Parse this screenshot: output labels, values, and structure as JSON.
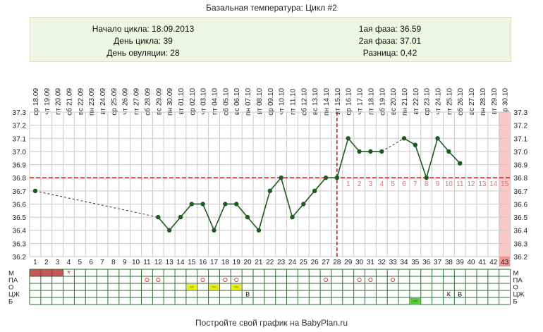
{
  "title": "Базальная температура: Цикл #2",
  "info": {
    "left": [
      "Начало цикла: 18.09.2013",
      "День цикла: 39",
      "День овуляции: 28"
    ],
    "right": [
      "1ая фаза: 36.59",
      "2ая фаза: 37.01",
      "Разница: 0,42"
    ]
  },
  "footer": "Постройте свой график на BabyPlan.ru",
  "colors": {
    "line": "#1f5a1f",
    "cover_line": "#cc0000",
    "grid": "#c8c8c8",
    "period_band": "#f8c8c8",
    "menstruation": "#cc5555",
    "mucus_cream": "#eeee00",
    "mucus_egg_white": "#55cc33"
  },
  "chart_data": {
    "type": "line",
    "days": [
      1,
      2,
      3,
      4,
      5,
      6,
      7,
      8,
      9,
      10,
      11,
      12,
      13,
      14,
      15,
      16,
      17,
      18,
      19,
      20,
      21,
      22,
      23,
      24,
      25,
      26,
      27,
      28,
      29,
      30,
      31,
      32,
      33,
      34,
      35,
      36,
      37,
      38,
      39,
      40,
      41,
      42,
      43
    ],
    "dates": [
      "18.09",
      "19.09",
      "20.09",
      "21.09",
      "22.09",
      "23.09",
      "24.09",
      "25.09",
      "26.09",
      "27.09",
      "28.09",
      "29.09",
      "30.09",
      "01.10",
      "02.10",
      "03.10",
      "04.10",
      "05.10",
      "06.10",
      "07.10",
      "08.10",
      "09.10",
      "10.10",
      "11.10",
      "12.10",
      "13.10",
      "14.10",
      "15.10",
      "16.10",
      "17.10",
      "18.10",
      "19.10",
      "20.10",
      "21.10",
      "22.10",
      "23.10",
      "24.10",
      "25.10",
      "26.10",
      "27.10",
      "28.10",
      "29.10",
      "30.10"
    ],
    "weekdays": [
      "ср",
      "чт",
      "пт",
      "сб",
      "вс",
      "пн",
      "вт",
      "ср",
      "чт",
      "пт",
      "сб",
      "вс",
      "пн",
      "вт",
      "ср",
      "чт",
      "пт",
      "сб",
      "вс",
      "пн",
      "вт",
      "ср",
      "чт",
      "пт",
      "сб",
      "вс",
      "пн",
      "вт",
      "ср",
      "чт",
      "пт",
      "сб",
      "вс",
      "пн",
      "вт",
      "ср",
      "чт",
      "пт",
      "сб",
      "вс",
      "пн",
      "вт",
      "ср"
    ],
    "temps": [
      36.7,
      null,
      null,
      null,
      null,
      null,
      null,
      null,
      null,
      null,
      null,
      36.5,
      36.4,
      36.5,
      36.6,
      36.6,
      36.4,
      36.6,
      36.6,
      36.5,
      36.4,
      36.7,
      36.8,
      36.5,
      36.6,
      36.7,
      36.8,
      36.8,
      37.1,
      37.0,
      37.0,
      37.0,
      null,
      37.1,
      37.05,
      36.8,
      37.1,
      37.0,
      36.91,
      null,
      null,
      null,
      null
    ],
    "dashed_segments": [
      [
        1,
        12
      ],
      [
        32,
        34
      ]
    ],
    "cover_line": 36.8,
    "ovulation_day": 28,
    "post_ovulation_numbers": [
      "1",
      "2",
      "3",
      "4",
      "5",
      "6",
      "7",
      "8",
      "9",
      "10",
      "11",
      "12",
      "13",
      "14",
      "15"
    ],
    "current_day_marker": 43,
    "moon_day": 15,
    "ylim": [
      36.2,
      37.3
    ],
    "yticks": [
      "36.2",
      "36.3",
      "36.4",
      "36.5",
      "36.6",
      "36.7",
      "36.8",
      "36.9",
      "37.0",
      "37.1",
      "37.2",
      "37.3"
    ],
    "grid": true
  },
  "bottom_rows": [
    {
      "label": "М",
      "marks": [
        {
          "day": 1,
          "type": "fill"
        },
        {
          "day": 2,
          "type": "fill"
        },
        {
          "day": 3,
          "type": "fill"
        },
        {
          "day": 4,
          "type": "star"
        }
      ]
    },
    {
      "label": "ПА",
      "marks": [
        {
          "day": 11,
          "type": "circle"
        },
        {
          "day": 12,
          "type": "circle"
        },
        {
          "day": 16,
          "type": "circle"
        },
        {
          "day": 18,
          "type": "circle"
        },
        {
          "day": 19,
          "type": "circle"
        },
        {
          "day": 27,
          "type": "circle"
        },
        {
          "day": 30,
          "type": "circle"
        },
        {
          "day": 31,
          "type": "circle"
        },
        {
          "day": 33,
          "type": "circle"
        }
      ]
    },
    {
      "label": "О",
      "marks": [
        {
          "day": 15,
          "type": "cream"
        },
        {
          "day": 17,
          "type": "cream"
        },
        {
          "day": 19,
          "type": "cream"
        }
      ]
    },
    {
      "label": "ЦЖ",
      "marks": [
        {
          "day": 20,
          "type": "text",
          "text": "В"
        },
        {
          "day": 38,
          "type": "text",
          "text": "К"
        },
        {
          "day": 39,
          "type": "text",
          "text": "В"
        }
      ]
    },
    {
      "label": "Б",
      "marks": [
        {
          "day": 35,
          "type": "egg"
        }
      ]
    }
  ]
}
